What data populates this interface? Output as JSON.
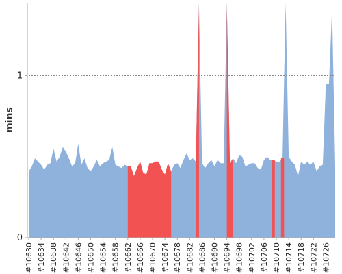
{
  "chart_data": {
    "type": "area",
    "title": "",
    "xlabel": "",
    "ylabel": "mins",
    "ylim": [
      0,
      1.45
    ],
    "y_ticks": [
      0,
      1
    ],
    "y_tick_labels": [
      "0",
      "1"
    ],
    "reference_line": {
      "y": 1,
      "style": "dotted"
    },
    "x_start_build": 10630,
    "x_tick_labels": [
      "#10630",
      "#10634",
      "#10638",
      "#10642",
      "#10646",
      "#10650",
      "#10654",
      "#10658",
      "#10662",
      "#10666",
      "#10670",
      "#10674",
      "#10678",
      "#10682",
      "#10686",
      "#10690",
      "#10694",
      "#10698",
      "#10702",
      "#10706",
      "#10710",
      "#10714",
      "#10718",
      "#10722",
      "#10726"
    ],
    "colors": {
      "success": "#8fb2dc",
      "failed": "#f25252",
      "axis": "#aaaaaa",
      "grid": "#888888"
    },
    "series": [
      {
        "values": [
          0.41,
          0.44,
          0.49,
          0.47,
          0.45,
          0.42,
          0.45,
          0.46,
          0.55,
          0.47,
          0.5,
          0.56,
          0.53,
          0.49,
          0.44,
          0.46,
          0.58,
          0.45,
          0.49,
          0.43,
          0.41,
          0.44,
          0.48,
          0.44,
          0.46,
          0.47,
          0.48,
          0.56,
          0.45,
          0.44,
          0.43,
          0.45,
          0.44,
          0.44,
          0.38,
          0.43,
          0.47,
          0.4,
          0.39,
          0.46,
          0.46,
          0.47,
          0.47,
          0.42,
          0.39,
          0.46,
          0.41,
          0.45,
          0.46,
          0.43,
          0.48,
          0.52,
          0.48,
          0.49,
          0.47,
          1.5,
          0.46,
          0.43,
          0.46,
          0.48,
          0.44,
          0.48,
          0.46,
          0.46,
          1.5,
          0.46,
          0.49,
          0.46,
          0.51,
          0.5,
          0.44,
          0.45,
          0.46,
          0.46,
          0.43,
          0.42,
          0.48,
          0.5,
          0.48,
          0.48,
          0.47,
          0.47,
          0.49,
          1.5,
          0.5,
          0.47,
          0.45,
          0.38,
          0.47,
          0.45,
          0.47,
          0.45,
          0.47,
          0.41,
          0.44,
          0.45,
          0.95,
          0.95,
          1.42,
          0.45
        ],
        "status": [
          "s",
          "s",
          "s",
          "s",
          "s",
          "s",
          "s",
          "s",
          "s",
          "s",
          "s",
          "s",
          "s",
          "s",
          "s",
          "s",
          "s",
          "s",
          "s",
          "s",
          "s",
          "s",
          "s",
          "s",
          "s",
          "s",
          "s",
          "s",
          "s",
          "s",
          "s",
          "s",
          "f",
          "f",
          "f",
          "f",
          "f",
          "f",
          "f",
          "f",
          "f",
          "f",
          "f",
          "f",
          "f",
          "f",
          "f",
          "s",
          "s",
          "s",
          "s",
          "s",
          "s",
          "s",
          "f",
          "f",
          "s",
          "s",
          "s",
          "s",
          "s",
          "s",
          "s",
          "s",
          "f",
          "f",
          "f",
          "s",
          "s",
          "s",
          "s",
          "s",
          "s",
          "s",
          "s",
          "s",
          "s",
          "s",
          "s",
          "f",
          "s",
          "s",
          "f",
          "s",
          "s",
          "s",
          "s",
          "s",
          "s",
          "s",
          "s",
          "s",
          "s",
          "s",
          "s",
          "s",
          "s",
          "s",
          "s",
          "s"
        ]
      }
    ]
  }
}
